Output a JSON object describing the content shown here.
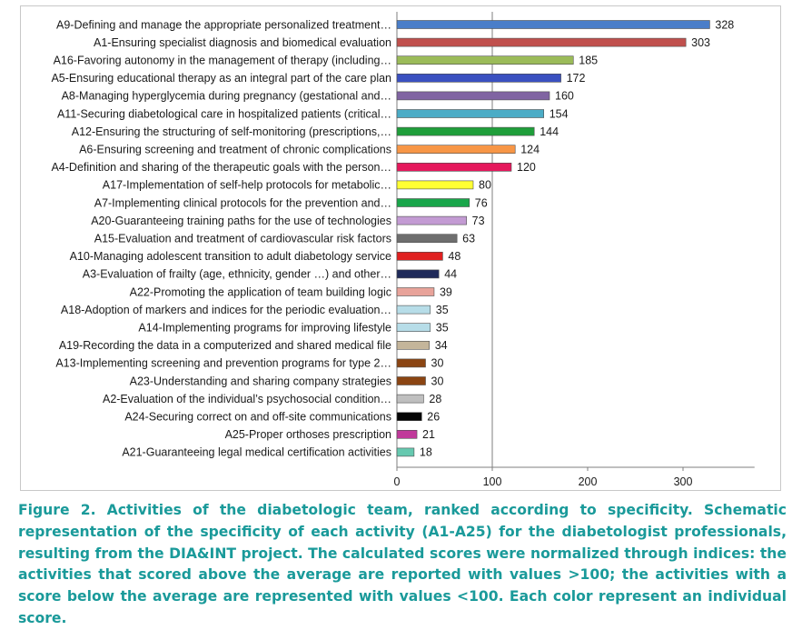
{
  "chart_data": {
    "type": "bar",
    "orientation": "horizontal",
    "categories": [
      "A9-Defining and manage the appropriate personalized treatment…",
      "A1-Ensuring specialist diagnosis and biomedical evaluation",
      "A16-Favoring autonomy in the management of therapy (including…",
      "A5-Ensuring educational therapy as an integral part of the care plan",
      "A8-Managing hyperglycemia during pregnancy (gestational and…",
      "A11-Securing diabetological care in hospitalized patients (critical…",
      "A12-Ensuring the structuring of self-monitoring (prescriptions,…",
      "A6-Ensuring screening and treatment of chronic complications",
      "A4-Definition and sharing of the therapeutic goals with the person…",
      "A17-Implementation of self-help protocols for metabolic…",
      "A7-Implementing clinical protocols for the prevention and…",
      "A20-Guaranteeing training paths for the use of technologies",
      "A15-Evaluation and treatment of cardiovascular risk factors",
      "A10-Managing adolescent transition to adult diabetology service",
      "A3-Evaluation of frailty (age, ethnicity, gender …) and other…",
      "A22-Promoting the application of team building logic",
      "A18-Adoption of markers and indices for the periodic evaluation…",
      "A14-Implementing programs for improving lifestyle",
      "A19-Recording the data in a computerized and shared medical file",
      "A13-Implementing screening and prevention programs for type 2…",
      "A23-Understanding and sharing company strategies",
      "A2-Evaluation of the individual’s psychosocial condition…",
      "A24-Securing correct on and off-site communications",
      "A25-Proper orthoses prescription",
      "A21-Guaranteeing legal medical certification activities"
    ],
    "values": [
      328,
      303,
      185,
      172,
      160,
      154,
      144,
      124,
      120,
      80,
      76,
      73,
      63,
      48,
      44,
      39,
      35,
      35,
      34,
      30,
      30,
      28,
      26,
      21,
      18
    ],
    "colors": [
      "#4a7ec9",
      "#c0504d",
      "#9bbb59",
      "#3a50c0",
      "#8064a2",
      "#4bacc6",
      "#1f9e3a",
      "#f79646",
      "#e5185c",
      "#ffff33",
      "#19a64a",
      "#c39bd3",
      "#6e6e6e",
      "#e02020",
      "#1f2a5a",
      "#e8a39a",
      "#b7dde8",
      "#b7dde8",
      "#c4b59a",
      "#8b4513",
      "#8b4513",
      "#bfbfbf",
      "#050505",
      "#c0399a",
      "#66c9b0"
    ],
    "xticks": [
      0,
      100,
      200,
      300
    ],
    "xlim": [
      0,
      375
    ],
    "reference_line": 100,
    "grid": false
  },
  "caption": "Figure 2. Activities of the diabetologic team, ranked according to specificity. Schematic representation of the specificity of each activity (A1-A25) for the diabetologist professionals, resulting from the DIA&INT project. The calculated scores were normalized through indices: the activities that scored above the average are reported with values >100; the activities with a score below the average are represented with values <100. Each color represent an individual score."
}
